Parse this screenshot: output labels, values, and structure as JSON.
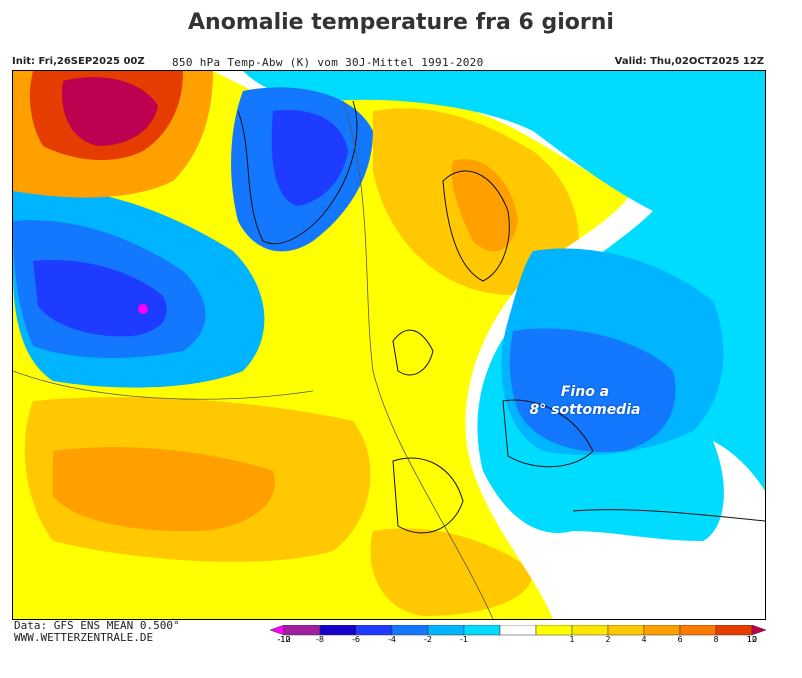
{
  "header": {
    "title": "Anomalie temperature fra 6 giorni",
    "init": "Init: Fri,26SEP2025 00Z",
    "description": "850 hPa Temp-Abw (K) vom 30J-Mittel 1991-2020",
    "valid": "Valid: Thu,02OCT2025 12Z"
  },
  "map": {
    "annotation_line1": "Fino a",
    "annotation_line2": "8° sottomedia"
  },
  "footer": {
    "data_source": "Data: GFS ENS MEAN 0.500°",
    "website": "WWW.WETTERZENTRALE.DE"
  },
  "legend": {
    "items": [
      {
        "label": "-12",
        "color": "#ff00ff"
      },
      {
        "label": "-10",
        "color": "#a01fa0"
      },
      {
        "label": "-8",
        "color": "#1400c8"
      },
      {
        "label": "-6",
        "color": "#1e3cff"
      },
      {
        "label": "-4",
        "color": "#1478ff"
      },
      {
        "label": "-2",
        "color": "#00b4ff"
      },
      {
        "label": "-1",
        "color": "#00dcff"
      },
      {
        "label": "",
        "color": "#ffffff"
      },
      {
        "label": "1",
        "color": "#ffff00"
      },
      {
        "label": "2",
        "color": "#ffe600"
      },
      {
        "label": "4",
        "color": "#ffc800"
      },
      {
        "label": "6",
        "color": "#ffa000"
      },
      {
        "label": "8",
        "color": "#ff7800"
      },
      {
        "label": "10",
        "color": "#e63c00"
      },
      {
        "label": "12",
        "color": "#be0050"
      }
    ]
  }
}
